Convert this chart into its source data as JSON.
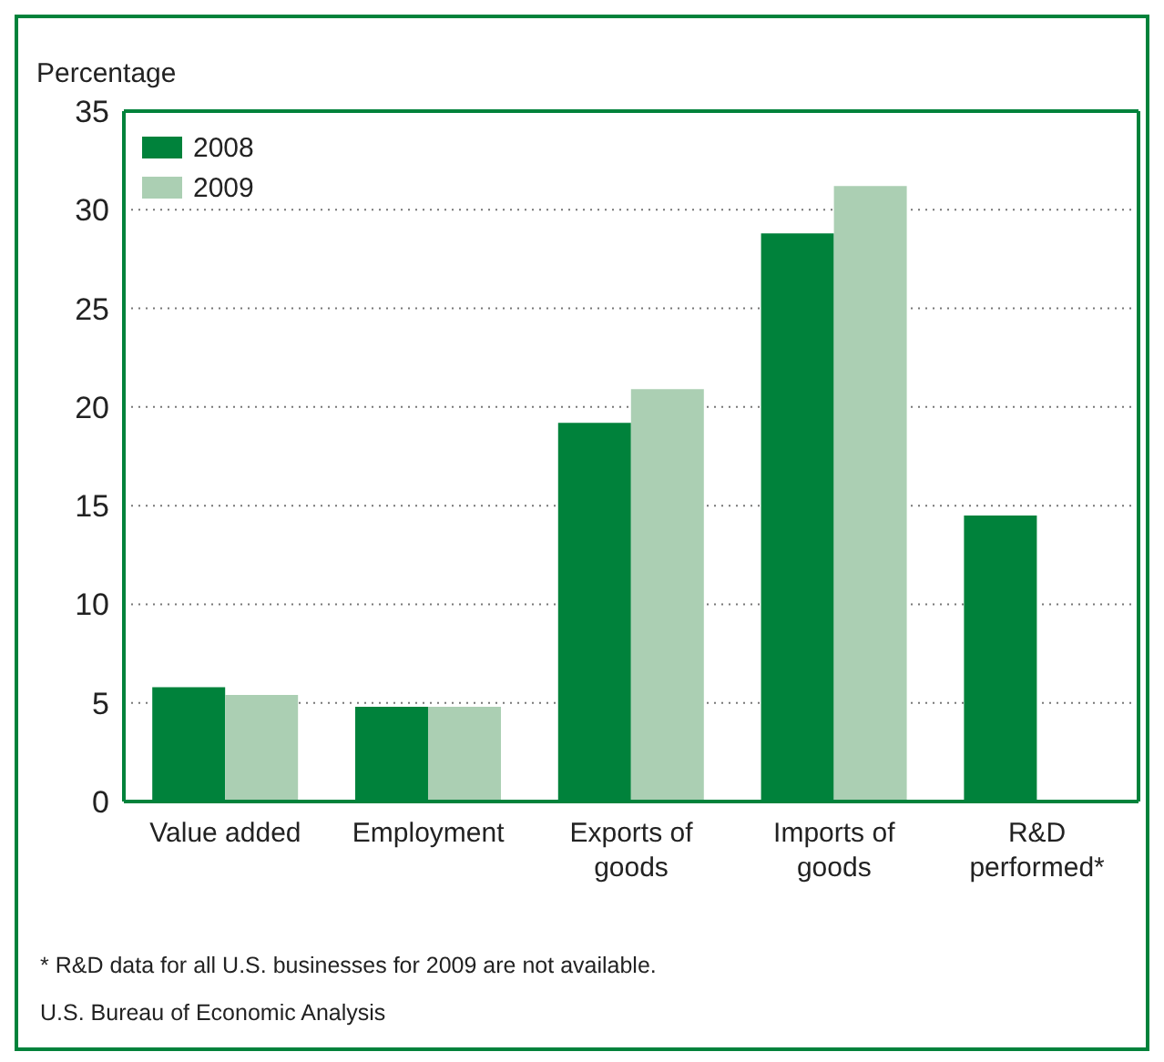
{
  "chart_data": {
    "type": "bar",
    "ylabel": "Percentage",
    "categories": [
      "Value added",
      "Employment",
      "Exports of goods",
      "Imports of goods",
      "R&D performed*"
    ],
    "series": [
      {
        "name": "2008",
        "color": "#00823b",
        "values": [
          5.8,
          4.8,
          19.2,
          28.8,
          14.5
        ]
      },
      {
        "name": "2009",
        "color": "#abcfb3",
        "values": [
          5.4,
          4.8,
          20.9,
          31.2,
          null
        ]
      }
    ],
    "ylim": [
      0,
      35
    ],
    "yticks": [
      0,
      5,
      10,
      15,
      20,
      25,
      30,
      35
    ],
    "grid": "y",
    "legend": "top left",
    "annotations": [
      "* R&D data for all U.S. businesses for 2009 are not available.",
      "U.S. Bureau of Economic Analysis"
    ]
  }
}
